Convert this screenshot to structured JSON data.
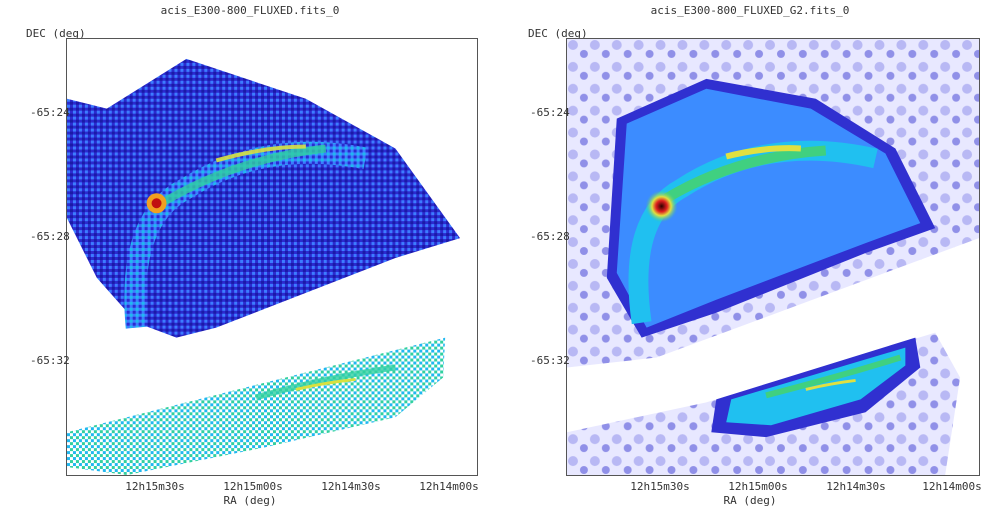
{
  "chart_data": [
    {
      "type": "heatmap",
      "title": "acis_E300-800_FLUXED.fits_0",
      "xlabel": "RA (deg)",
      "ylabel": "DEC (deg)",
      "x_ticks": [
        "12h15m30s",
        "12h15m00s",
        "12h14m30s",
        "12h14m00s"
      ],
      "y_ticks": [
        "-65:24",
        "-65:28",
        "-65:32"
      ],
      "colormap": [
        "#2b2bd0",
        "#3c7dff",
        "#20b8f0",
        "#30d0a0",
        "#d8e040",
        "#f0a020",
        "#c01010"
      ],
      "description_values": {
        "smoothing": "none",
        "peak_region": "arc north-east edge"
      }
    },
    {
      "type": "heatmap",
      "title": "acis_E300-800_FLUXED_G2.fits_0",
      "xlabel": "RA (deg)",
      "ylabel": "DEC (deg)",
      "x_ticks": [
        "12h15m30s",
        "12h15m00s",
        "12h14m30s",
        "12h14m00s"
      ],
      "y_ticks": [
        "-65:24",
        "-65:28",
        "-65:32"
      ],
      "colormap": [
        "#e8e8ff",
        "#9090e8",
        "#3030d0",
        "#3c8cff",
        "#20c0f0",
        "#40d080",
        "#e0e040",
        "#e02020",
        "#300000"
      ],
      "description_values": {
        "smoothing": "gaussian"
      }
    }
  ]
}
